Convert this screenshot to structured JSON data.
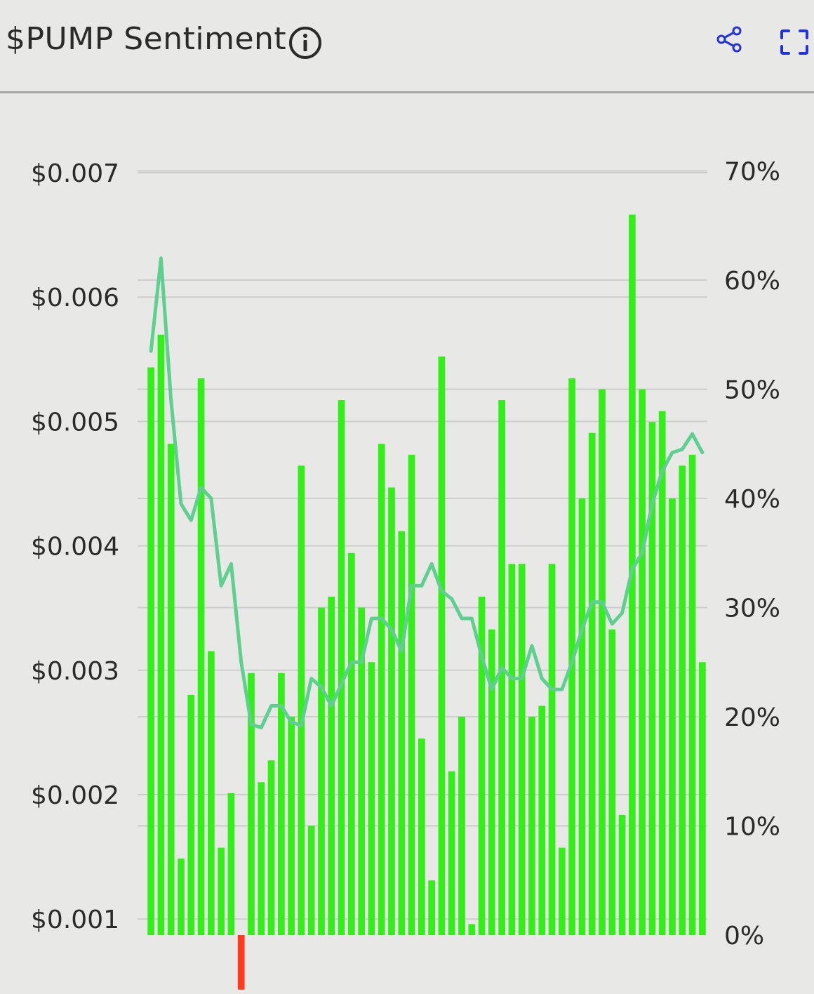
{
  "header": {
    "title": "$PUMP Sentiment",
    "info_icon": "info-circle-icon",
    "share_icon": "share-nodes-icon",
    "fullscreen_icon": "fullscreen-icon"
  },
  "colors": {
    "bar_positive": "#33ee18",
    "bar_negative": "#ff3b1f",
    "line": "#5fcf8f",
    "accent_icon": "#2233dd",
    "grid": "#cdcdcd"
  },
  "chart_data": {
    "type": "bar",
    "left_axis": {
      "ticks": [
        "$0.007",
        "$0.006",
        "$0.005",
        "$0.004",
        "$0.003",
        "$0.002",
        "$0.001"
      ],
      "ylim": [
        0.001,
        0.007
      ]
    },
    "right_axis": {
      "ticks": [
        "70%",
        "60%",
        "50%",
        "40%",
        "30%",
        "20%",
        "10%",
        "0%"
      ],
      "ylim": [
        0,
        70
      ]
    },
    "grid": true,
    "series": [
      {
        "type": "bar",
        "values": [
          52,
          55,
          45,
          7,
          22,
          51,
          26,
          8,
          13,
          -5,
          24,
          14,
          16,
          24,
          20,
          43,
          10,
          30,
          31,
          49,
          35,
          30,
          25,
          45,
          41,
          37,
          44,
          18,
          5,
          53,
          15,
          20,
          1,
          31,
          28,
          49,
          34,
          34,
          20,
          21,
          34,
          8,
          51,
          40,
          46,
          50,
          28,
          11,
          66,
          50,
          47,
          48,
          40,
          43,
          44,
          25
        ]
      },
      {
        "type": "line",
        "values": [
          53.5,
          62,
          49,
          39.5,
          38,
          41,
          40,
          32,
          34,
          25,
          19.3,
          19,
          21,
          21,
          19.5,
          19.2,
          23.5,
          22.7,
          21,
          23,
          25,
          25,
          29,
          29,
          28,
          26,
          32,
          32,
          34,
          31.5,
          30.8,
          29,
          29,
          25.5,
          22.5,
          24.5,
          23.5,
          23.5,
          26.5,
          23.5,
          22.5,
          22.5,
          25,
          28,
          30.5,
          30.5,
          28.5,
          29.5,
          33.5,
          35,
          39.5,
          42.5,
          44.2,
          44.5,
          45.9,
          44.2
        ]
      }
    ]
  }
}
